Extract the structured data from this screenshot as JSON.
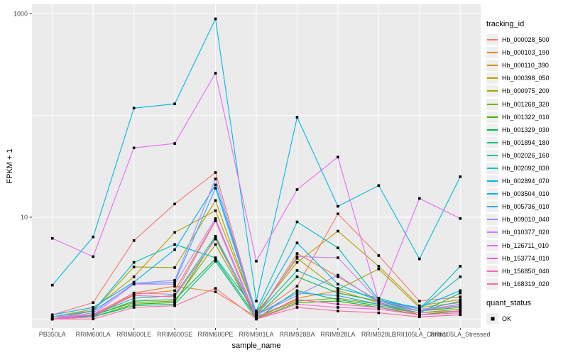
{
  "figure": {
    "panel_bg": "#EBEBEB",
    "grid_color": "#FFFFFF",
    "axis_text_color": "#4D4D4D",
    "tick_color": "#333333",
    "point_color": "#000000",
    "legend_key_bg": "#EFEFEF"
  },
  "chart_data": {
    "type": "line",
    "title": "",
    "xlabel": "sample_name",
    "ylabel": "FPKM + 1",
    "y_scale": "log10",
    "y_tick_labels": [
      1000,
      10
    ],
    "y_gridlines": [
      1,
      10,
      100,
      1000
    ],
    "ylim": [
      0.9,
      1200
    ],
    "grid": true,
    "legend_position": "right",
    "point_marker": "filled-square",
    "categories": [
      "PB350LA",
      "RRIM600LA",
      "RRIM600LE",
      "RRIM600SE",
      "RRIM600PE",
      "RRIM901LA",
      "RRIM928BA",
      "RRIM928LA",
      "RRIM928LE",
      "RRII105LA_Control",
      "RRII105LA_Stressed"
    ],
    "series": [
      {
        "name": "Hb_000028_500",
        "color": "#F8766D",
        "values": [
          1.1,
          1.45,
          5.9,
          13.5,
          27.5,
          1.1,
          2.1,
          10.8,
          4.2,
          1.5,
          1.65
        ]
      },
      {
        "name": "Hb_000103_190",
        "color": "#EA8331",
        "values": [
          1.0,
          1.1,
          1.8,
          2.1,
          1.85,
          1.05,
          4.4,
          2.6,
          1.5,
          1.2,
          1.35
        ]
      },
      {
        "name": "Hb_000110_390",
        "color": "#D89000",
        "values": [
          1.0,
          1.05,
          1.75,
          1.9,
          9.3,
          1.0,
          1.6,
          1.9,
          1.45,
          1.1,
          1.2
        ]
      },
      {
        "name": "Hb_000398_050",
        "color": "#C09B00",
        "values": [
          1.05,
          1.25,
          2.6,
          7.1,
          11.6,
          1.15,
          3.6,
          7.3,
          3.3,
          1.35,
          1.55
        ]
      },
      {
        "name": "Hb_000975_200",
        "color": "#A3A500",
        "values": [
          1.0,
          1.2,
          3.25,
          3.2,
          14.6,
          1.1,
          3.95,
          1.95,
          3.1,
          1.3,
          1.45
        ]
      },
      {
        "name": "Hb_001268_320",
        "color": "#7CAE00",
        "values": [
          1.0,
          1.1,
          1.45,
          1.5,
          5.4,
          1.05,
          1.5,
          1.6,
          1.4,
          1.15,
          1.25
        ]
      },
      {
        "name": "Hb_001322_010",
        "color": "#39B600",
        "values": [
          1.0,
          1.05,
          1.4,
          1.45,
          6.3,
          1.0,
          1.45,
          1.5,
          1.3,
          1.1,
          1.2
        ]
      },
      {
        "name": "Hb_001329_030",
        "color": "#00BB4E",
        "values": [
          1.0,
          1.08,
          1.5,
          1.55,
          3.9,
          1.05,
          2.6,
          1.8,
          1.5,
          1.2,
          1.3
        ]
      },
      {
        "name": "Hb_001894_180",
        "color": "#00BF7D",
        "values": [
          1.0,
          1.05,
          1.35,
          1.4,
          3.7,
          1.0,
          1.9,
          1.55,
          1.35,
          1.15,
          1.8
        ]
      },
      {
        "name": "Hb_002026_160",
        "color": "#00C1A3",
        "values": [
          1.0,
          1.1,
          1.6,
          1.7,
          6.5,
          1.1,
          3.0,
          2.0,
          1.6,
          1.25,
          2.6
        ]
      },
      {
        "name": "Hb_002092_030",
        "color": "#00BFC4",
        "values": [
          1.05,
          1.2,
          3.6,
          5.4,
          4.0,
          1.2,
          9.0,
          5.0,
          1.55,
          1.25,
          3.3
        ]
      },
      {
        "name": "Hb_002894_070",
        "color": "#00BAE0",
        "values": [
          2.15,
          6.4,
          118,
          130,
          890,
          1.5,
          96,
          12.8,
          20.5,
          3.9,
          25
        ]
      },
      {
        "name": "Hb_003504_010",
        "color": "#00B0F6",
        "values": [
          1.1,
          1.3,
          2.3,
          4.8,
          20.8,
          1.15,
          5.6,
          2.2,
          1.5,
          1.3,
          1.9
        ]
      },
      {
        "name": "Hb_005736_010",
        "color": "#35A2FF",
        "values": [
          1.05,
          1.2,
          2.2,
          2.3,
          19.3,
          1.1,
          1.8,
          1.7,
          1.4,
          1.2,
          1.5
        ]
      },
      {
        "name": "Hb_009010_040",
        "color": "#9590FF",
        "values": [
          1.0,
          1.15,
          2.25,
          2.4,
          23.8,
          1.1,
          1.7,
          2.7,
          1.45,
          1.2,
          1.4
        ]
      },
      {
        "name": "Hb_010377_020",
        "color": "#C77CFF",
        "values": [
          1.05,
          1.1,
          2.2,
          2.2,
          9.7,
          1.05,
          4.1,
          4.0,
          1.5,
          1.25,
          1.35
        ]
      },
      {
        "name": "Hb_126711_010",
        "color": "#E76BF3",
        "values": [
          6.2,
          4.1,
          48,
          53,
          260,
          3.7,
          18.7,
          39,
          1.5,
          15.3,
          9.7
        ]
      },
      {
        "name": "Hb_153774_010",
        "color": "#FA62DB",
        "values": [
          1.0,
          1.05,
          1.8,
          1.75,
          9.2,
          1.0,
          1.4,
          1.3,
          1.25,
          1.1,
          1.15
        ]
      },
      {
        "name": "Hb_156850_040",
        "color": "#FF62BC",
        "values": [
          1.0,
          1.1,
          1.7,
          1.65,
          6.1,
          1.05,
          1.55,
          1.4,
          1.3,
          1.15,
          1.2
        ]
      },
      {
        "name": "Hb_168319_020",
        "color": "#FF6A98",
        "values": [
          1.0,
          1.0,
          1.3,
          1.35,
          2.0,
          1.0,
          1.3,
          1.2,
          1.15,
          1.05,
          1.1
        ]
      }
    ],
    "legend": {
      "tracking_title": "tracking_id",
      "quant_title": "quant_status",
      "quant_items": [
        {
          "label": "OK",
          "marker": "black-square"
        }
      ]
    }
  }
}
